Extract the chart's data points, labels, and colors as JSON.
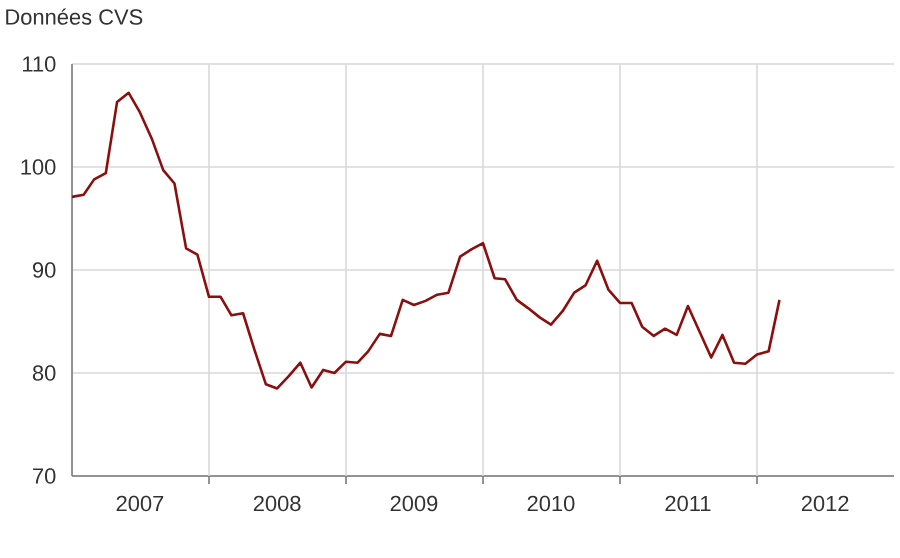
{
  "chart_data": {
    "type": "line",
    "title": "Données CVS",
    "color": "#8b0f0f",
    "x": [
      "2007-01",
      "2007-02",
      "2007-03",
      "2007-04",
      "2007-05",
      "2007-06",
      "2007-07",
      "2007-08",
      "2007-09",
      "2007-10",
      "2007-11",
      "2007-12",
      "2008-01",
      "2008-02",
      "2008-03",
      "2008-04",
      "2008-05",
      "2008-06",
      "2008-07",
      "2008-08",
      "2008-09",
      "2008-10",
      "2008-11",
      "2008-12",
      "2009-01",
      "2009-02",
      "2009-03",
      "2009-04",
      "2009-05",
      "2009-06",
      "2009-07",
      "2009-08",
      "2009-09",
      "2009-10",
      "2009-11",
      "2009-12",
      "2010-01",
      "2010-02",
      "2010-03",
      "2010-04",
      "2010-05",
      "2010-06",
      "2010-07",
      "2010-08",
      "2010-09",
      "2010-10",
      "2010-11",
      "2010-12",
      "2011-01",
      "2011-02",
      "2011-03",
      "2011-04",
      "2011-05",
      "2011-06",
      "2011-07",
      "2011-08",
      "2011-09",
      "2011-10",
      "2011-11",
      "2011-12",
      "2012-01",
      "2012-02",
      "2012-03"
    ],
    "values": [
      97.1,
      97.3,
      98.8,
      99.4,
      106.3,
      107.2,
      105.3,
      102.8,
      99.7,
      98.4,
      92.1,
      91.5,
      87.4,
      87.4,
      85.6,
      85.8,
      82.3,
      78.9,
      78.5,
      79.7,
      81.0,
      78.6,
      80.3,
      80.0,
      81.1,
      81.0,
      82.1,
      83.8,
      83.6,
      87.1,
      86.6,
      87.0,
      87.6,
      87.8,
      91.3,
      92.0,
      92.6,
      89.2,
      89.1,
      87.1,
      86.3,
      85.4,
      84.7,
      86.0,
      87.8,
      88.5,
      90.9,
      88.1,
      86.8,
      86.8,
      84.5,
      83.6,
      84.3,
      83.7,
      86.5,
      84.0,
      81.5,
      83.7,
      81.0,
      80.9,
      81.8,
      82.1,
      87.1
    ],
    "xlim": [
      "2007-01-01",
      "2013-01-01"
    ],
    "xticks": [
      {
        "value": "2007-07-01",
        "label": "2007"
      },
      {
        "value": "2008-01-01",
        "label": null
      },
      {
        "value": "2008-07-01",
        "label": "2008"
      },
      {
        "value": "2009-01-01",
        "label": null
      },
      {
        "value": "2009-07-01",
        "label": "2009"
      },
      {
        "value": "2010-01-01",
        "label": null
      },
      {
        "value": "2010-07-01",
        "label": "2010"
      },
      {
        "value": "2011-01-01",
        "label": null
      },
      {
        "value": "2011-07-01",
        "label": "2011"
      },
      {
        "value": "2012-01-01",
        "label": null
      },
      {
        "value": "2012-07-01",
        "label": "2012"
      }
    ],
    "ylim": [
      70,
      110
    ],
    "yticks": [
      70,
      80,
      90,
      100,
      110
    ],
    "grid": true,
    "marker": "none",
    "line_style": "solid"
  }
}
